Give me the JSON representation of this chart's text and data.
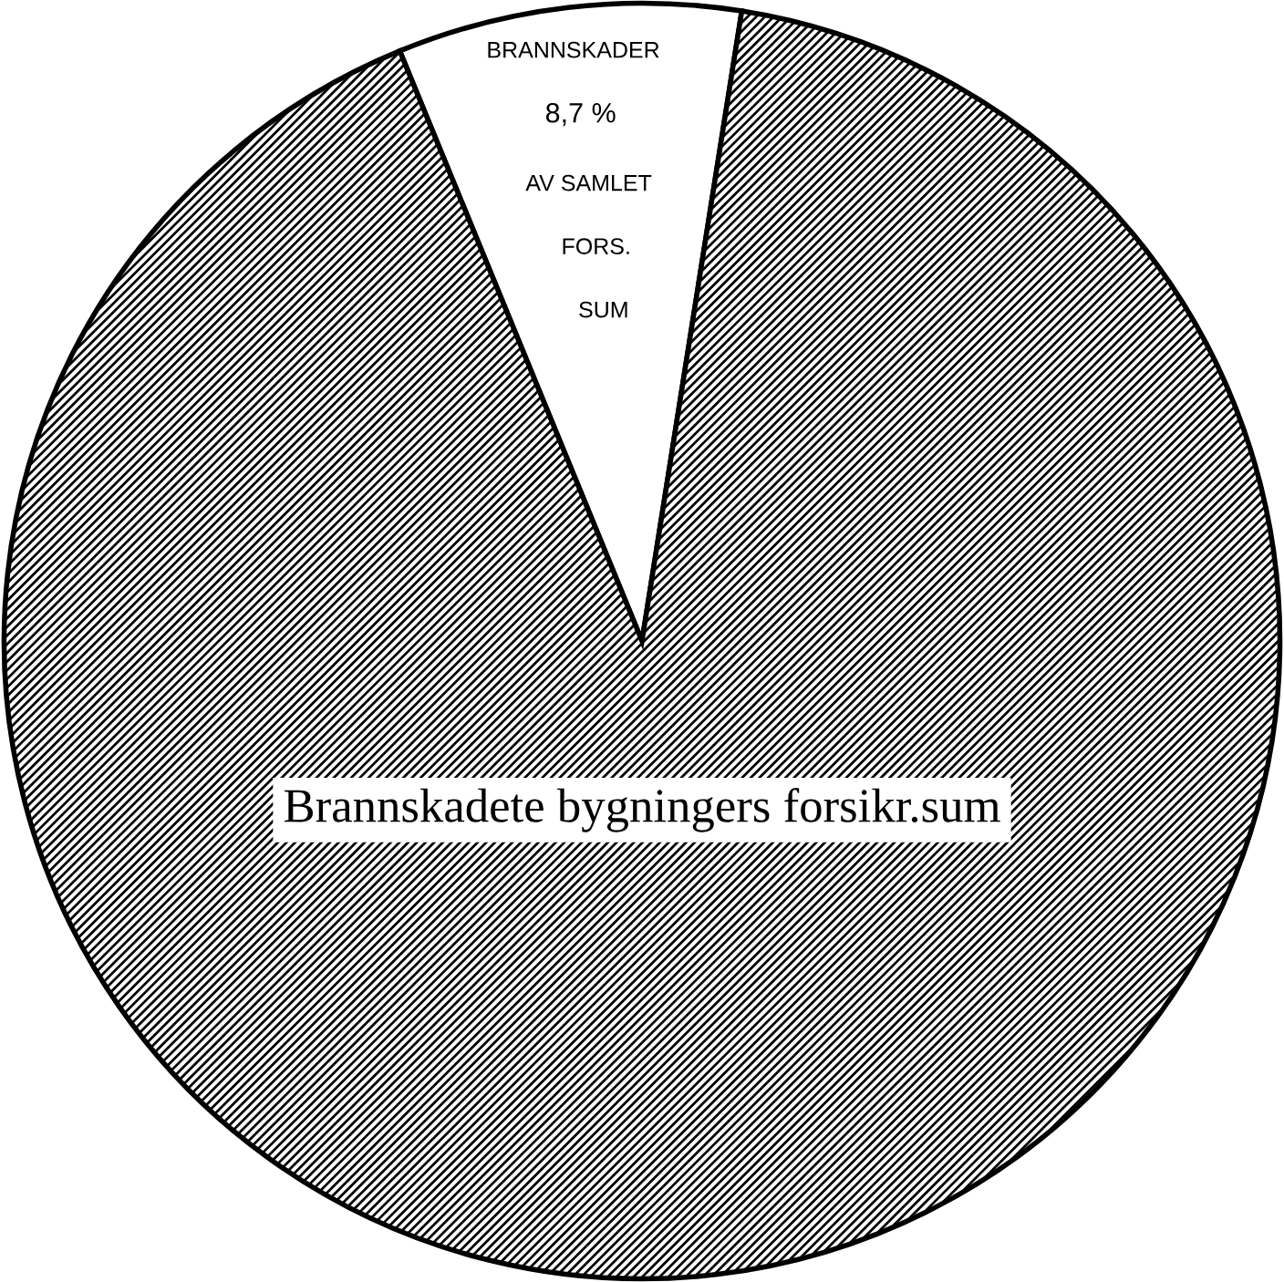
{
  "chart_data": {
    "type": "pie",
    "categories": [
      "BRANNSKADER",
      "Brannskadete bygningers forsikr.sum"
    ],
    "values": [
      8.7,
      91.3
    ],
    "colors": [
      "#ffffff",
      "#000000"
    ],
    "value_labels": [
      "8,7 %",
      null
    ],
    "annotations": [
      "AV SAMLET",
      "FORS.",
      "SUM"
    ],
    "legend": false
  }
}
